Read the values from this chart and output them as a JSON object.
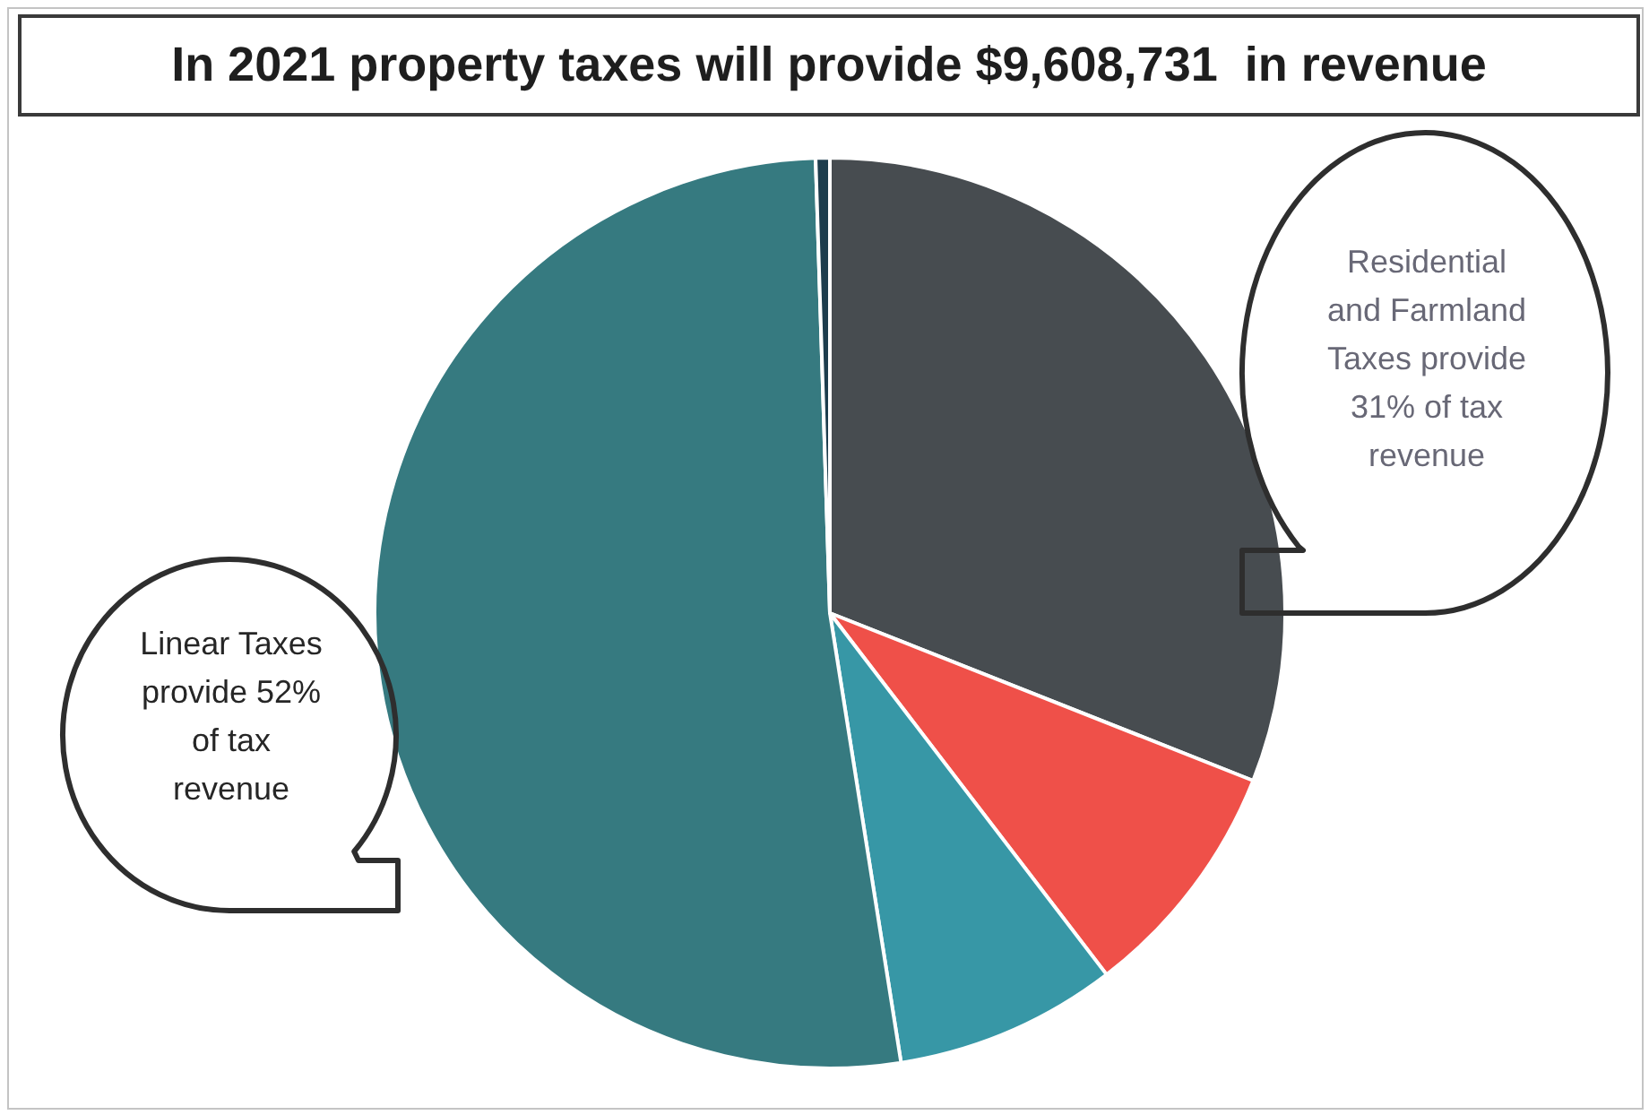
{
  "chart_data": {
    "type": "pie",
    "title": "In 2021 property taxes will provide $9,608,731  in revenue",
    "categories": [
      null,
      null,
      null,
      null,
      null
    ],
    "values": [
      31,
      8.6,
      7.9,
      52,
      0.5
    ],
    "colors": [
      "#474c50",
      "#ef5049",
      "#3797a6",
      "#367a80",
      "#1d3d4d"
    ],
    "annotations": [
      "Residential and Farmland Taxes provide 31% of tax revenue",
      "Linear Taxes provide 52% of tax revenue"
    ]
  }
}
